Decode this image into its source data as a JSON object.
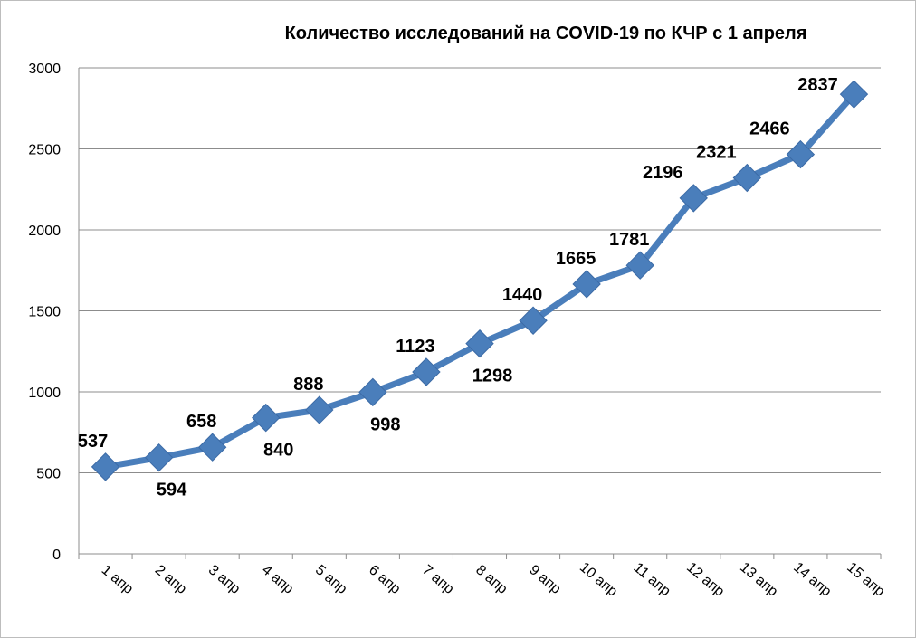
{
  "chart_data": {
    "type": "line",
    "title": "Количество  исследований на COVID-19 по КЧР с 1 апреля",
    "categories": [
      "1 апр",
      "2 апр",
      "3 апр",
      "4 апр",
      "5 апр",
      "6 апр",
      "7 апр",
      "8 апр",
      "9 апр",
      "10 апр",
      "11 апр",
      "12 апр",
      "13 апр",
      "14 апр",
      "15 апр"
    ],
    "series": [
      {
        "values": [
          537,
          594,
          658,
          840,
          888,
          998,
          1123,
          1298,
          1440,
          1665,
          1781,
          2196,
          2321,
          2466,
          2837
        ]
      }
    ],
    "data_labels": [
      "537",
      "594",
      "658",
      "840",
      "888",
      "998",
      "1123",
      "1298",
      "1440",
      "1665",
      "1781",
      "2196",
      "2321",
      "2466",
      "2837"
    ],
    "ylim": [
      0,
      3000
    ],
    "yticks": [
      0,
      500,
      1000,
      1500,
      2000,
      2500,
      3000
    ],
    "ytick_labels": [
      "0",
      "500",
      "1000",
      "1500",
      "2000",
      "2500",
      "3000"
    ],
    "grid": true,
    "legend": "none",
    "line_color": "#4a7ebb",
    "marker": "diamond"
  }
}
